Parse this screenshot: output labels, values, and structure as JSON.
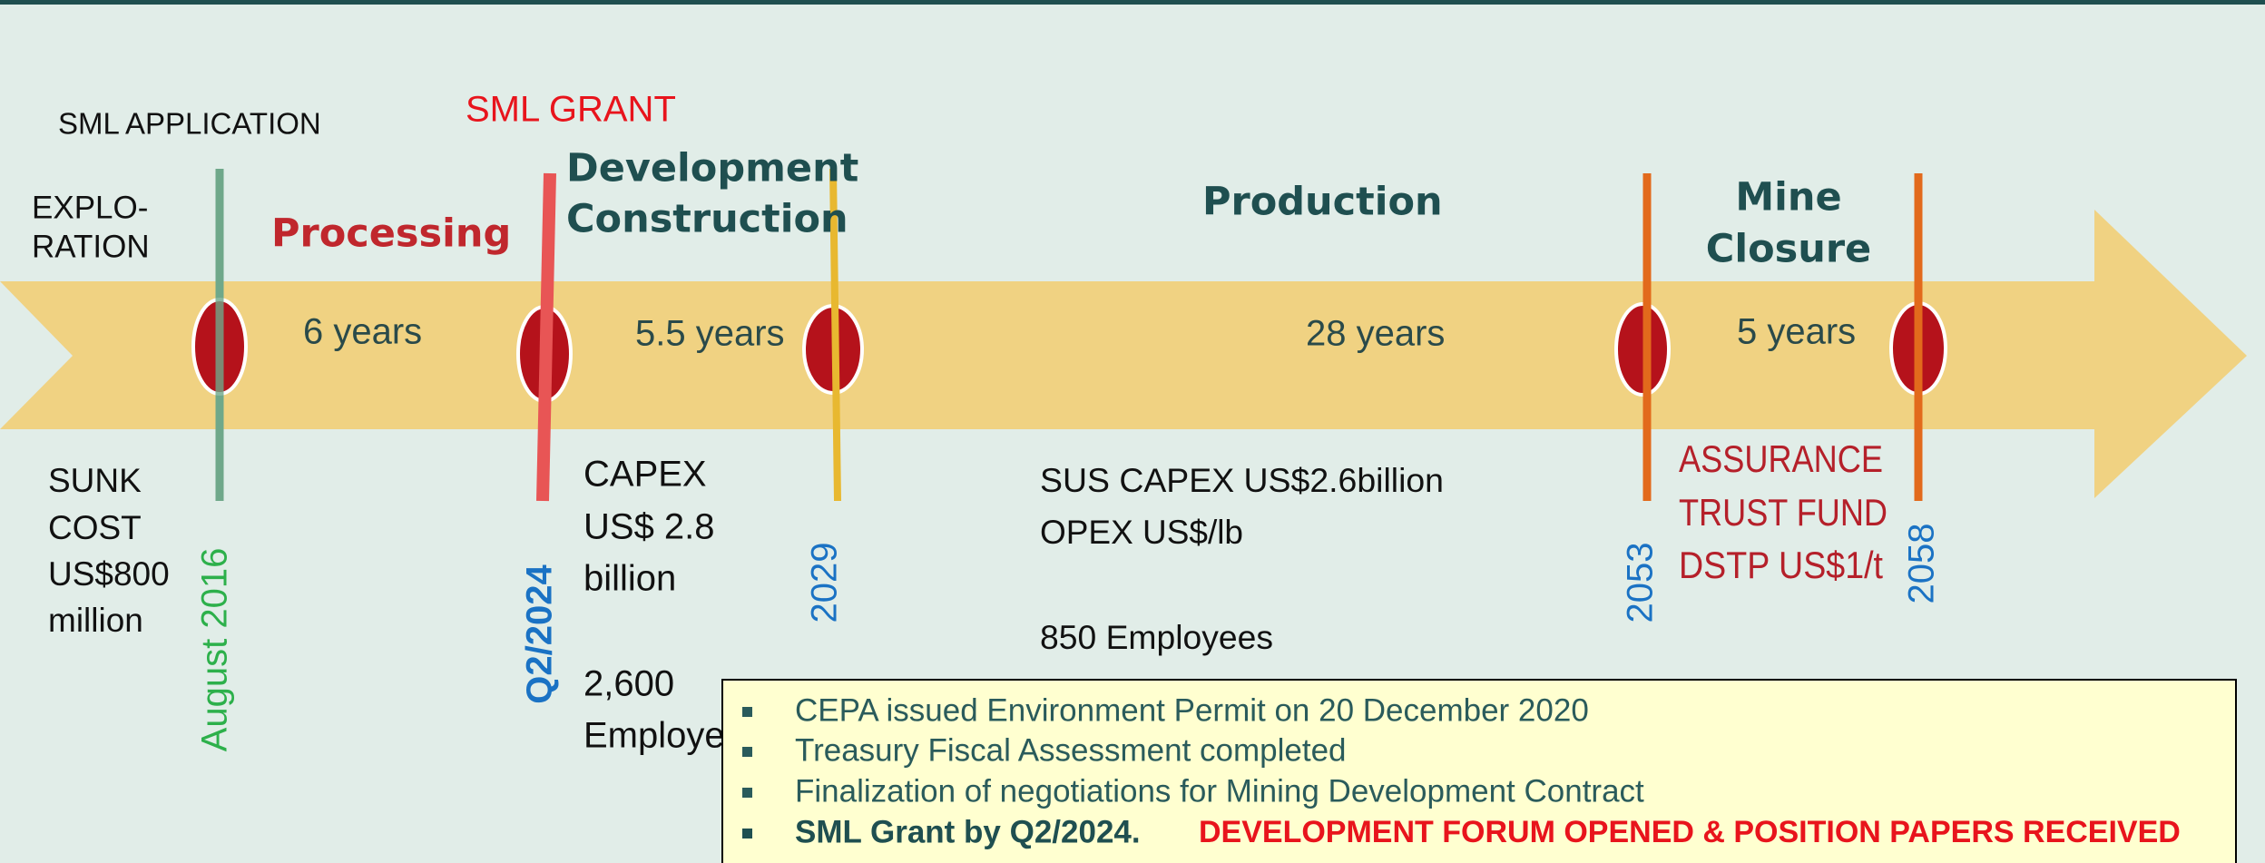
{
  "phases": [
    {
      "title": [
        "EXPLO-",
        "RATION"
      ]
    },
    {
      "title": [
        "Processing"
      ],
      "duration": "6 years"
    },
    {
      "title": [
        "Development",
        "Construction"
      ],
      "duration": "5.5 years"
    },
    {
      "title": [
        "Production"
      ],
      "duration": "28 years"
    },
    {
      "title": [
        "Mine",
        "Closure"
      ],
      "duration": "5 years"
    }
  ],
  "milestones": [
    {
      "date": "August 2016",
      "label": "SML APPLICATION",
      "notes": [
        "SUNK",
        "COST",
        "US$800",
        "million"
      ]
    },
    {
      "date": "Q2/2024",
      "label": "SML GRANT",
      "notes": [
        "CAPEX",
        "US$ 2.8",
        "billion",
        "2,600",
        "Employees"
      ]
    },
    {
      "date": "2029",
      "notes": [
        "SUS CAPEX US$2.6billion",
        "OPEX US$/lb",
        "850 Employees"
      ]
    },
    {
      "date": "2053",
      "notes": [
        "ASSURANCE",
        "TRUST FUND",
        "DSTP US$1/t"
      ]
    },
    {
      "date": "2058"
    }
  ],
  "status": [
    "CEPA issued Environment Permit on 20 December 2020",
    "Treasury Fiscal Assessment completed",
    "Finalization of negotiations for Mining Development Contract",
    {
      "text": "SML Grant by Q2/2024.",
      "highlight": "DEVELOPMENT FORUM OPENED & POSITION PAPERS RECEIVED"
    }
  ]
}
